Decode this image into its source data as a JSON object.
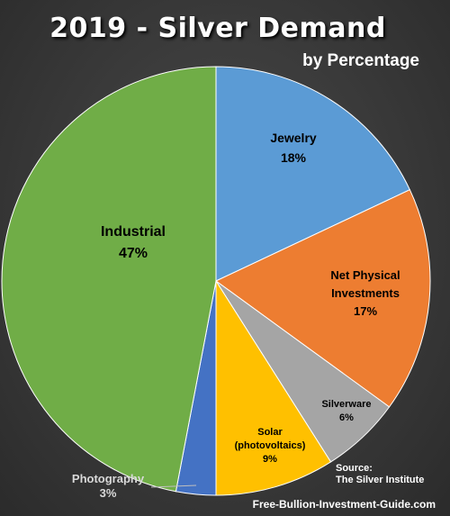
{
  "title": "2019 - Silver Demand",
  "subtitle": "by Percentage",
  "source_line1": "Source:",
  "source_line2": "The Silver Institute",
  "website": "Free-Bullion-Investment-Guide.com",
  "chart_data": {
    "type": "pie",
    "title": "2019 - Silver Demand",
    "subtitle": "by Percentage",
    "unit": "%",
    "slices": [
      {
        "name": "Jewelry",
        "lines": [
          "Jewelry"
        ],
        "value": 18,
        "label": "18%",
        "color": "#5b9bd5",
        "text_color": "#000000"
      },
      {
        "name": "Net Physical Investments",
        "lines": [
          "Net Physical",
          "Investments"
        ],
        "value": 17,
        "label": "17%",
        "color": "#ed7d31",
        "text_color": "#000000"
      },
      {
        "name": "Silverware",
        "lines": [
          "Silverware"
        ],
        "value": 6,
        "label": "6%",
        "color": "#a5a5a5",
        "text_color": "#000000"
      },
      {
        "name": "Solar (photovoltaics)",
        "lines": [
          "Solar",
          "(photovoltaics)"
        ],
        "value": 9,
        "label": "9%",
        "color": "#ffc000",
        "text_color": "#000000"
      },
      {
        "name": "Photography",
        "lines": [
          "Photography"
        ],
        "value": 3,
        "label": "3%",
        "color": "#4472c4",
        "text_color": "#d9d9d9"
      },
      {
        "name": "Industrial",
        "lines": [
          "Industrial"
        ],
        "value": 47,
        "label": "47%",
        "color": "#70ad47",
        "text_color": "#000000"
      }
    ]
  }
}
